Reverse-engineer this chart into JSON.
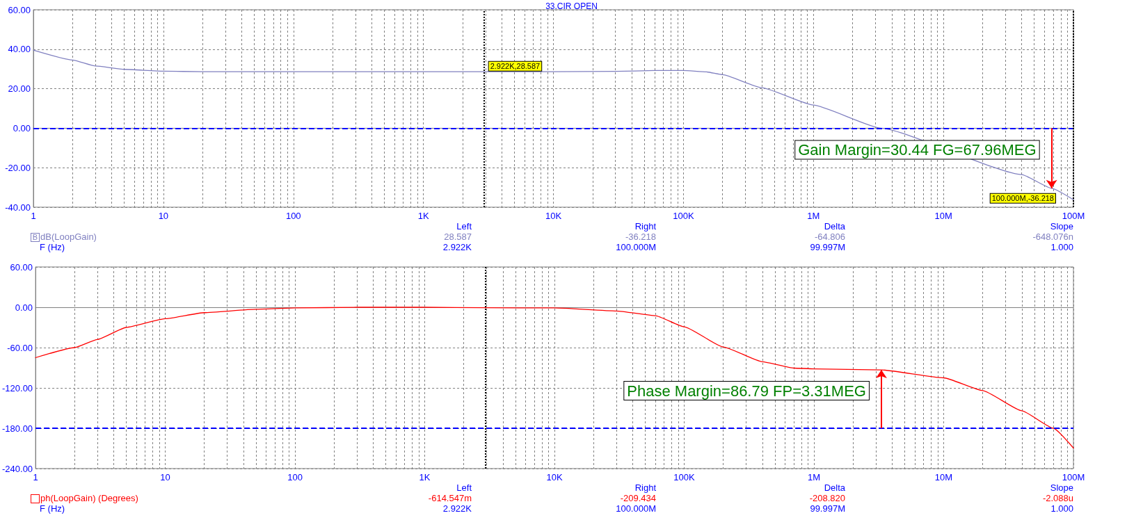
{
  "chart_data": [
    {
      "type": "line",
      "title": "33.CIR OPEN",
      "xlabel": "F (Hz)",
      "log": "x",
      "grid": true,
      "line_style": "solid",
      "xlim": [
        1,
        100000000
      ],
      "xticks": [
        1,
        {
          "value": 2,
          "label": null
        },
        {
          "value": 3,
          "label": null
        },
        {
          "value": 4,
          "label": null
        },
        {
          "value": 5,
          "label": null
        },
        {
          "value": 6,
          "label": null
        },
        {
          "value": 7,
          "label": null
        },
        {
          "value": 8,
          "label": null
        },
        {
          "value": 9,
          "label": null
        },
        10,
        {
          "value": 20,
          "label": null
        },
        {
          "value": 30,
          "label": null
        },
        {
          "value": 40,
          "label": null
        },
        {
          "value": 50,
          "label": null
        },
        {
          "value": 60,
          "label": null
        },
        {
          "value": 70,
          "label": null
        },
        {
          "value": 80,
          "label": null
        },
        {
          "value": 90,
          "label": null
        },
        100,
        {
          "value": 200,
          "label": null
        },
        {
          "value": 300,
          "label": null
        },
        {
          "value": 400,
          "label": null
        },
        {
          "value": 500,
          "label": null
        },
        {
          "value": 600,
          "label": null
        },
        {
          "value": 700,
          "label": null
        },
        {
          "value": 800,
          "label": null
        },
        {
          "value": 900,
          "label": null
        },
        {
          "value": 1000,
          "label": "1K"
        },
        {
          "value": 2000,
          "label": null
        },
        {
          "value": 3000,
          "label": null
        },
        {
          "value": 4000,
          "label": null
        },
        {
          "value": 5000,
          "label": null
        },
        {
          "value": 6000,
          "label": null
        },
        {
          "value": 7000,
          "label": null
        },
        {
          "value": 8000,
          "label": null
        },
        {
          "value": 9000,
          "label": null
        },
        {
          "value": 10000,
          "label": "10K"
        },
        {
          "value": 20000,
          "label": null
        },
        {
          "value": 30000,
          "label": null
        },
        {
          "value": 40000,
          "label": null
        },
        {
          "value": 50000,
          "label": null
        },
        {
          "value": 60000,
          "label": null
        },
        {
          "value": 70000,
          "label": null
        },
        {
          "value": 80000,
          "label": null
        },
        {
          "value": 90000,
          "label": null
        },
        {
          "value": 100000,
          "label": "100K"
        },
        {
          "value": 200000,
          "label": null
        },
        {
          "value": 300000,
          "label": null
        },
        {
          "value": 400000,
          "label": null
        },
        {
          "value": 500000,
          "label": null
        },
        {
          "value": 600000,
          "label": null
        },
        {
          "value": 700000,
          "label": null
        },
        {
          "value": 800000,
          "label": null
        },
        {
          "value": 900000,
          "label": null
        },
        {
          "value": 1000000,
          "label": "1M"
        },
        {
          "value": 2000000,
          "label": null
        },
        {
          "value": 3000000,
          "label": null
        },
        {
          "value": 4000000,
          "label": null
        },
        {
          "value": 5000000,
          "label": null
        },
        {
          "value": 6000000,
          "label": null
        },
        {
          "value": 7000000,
          "label": null
        },
        {
          "value": 8000000,
          "label": null
        },
        {
          "value": 9000000,
          "label": null
        },
        {
          "value": 10000000,
          "label": "10M"
        },
        {
          "value": 20000000,
          "label": null
        },
        {
          "value": 30000000,
          "label": null
        },
        {
          "value": 40000000,
          "label": null
        },
        {
          "value": 50000000,
          "label": null
        },
        {
          "value": 60000000,
          "label": null
        },
        {
          "value": 70000000,
          "label": null
        },
        {
          "value": 80000000,
          "label": null
        },
        {
          "value": 90000000,
          "label": null
        },
        {
          "value": 100000000,
          "label": "100M"
        }
      ],
      "ylim": [
        -40,
        60
      ],
      "yticks": [
        {
          "value": -40,
          "label": "-40.00"
        },
        {
          "value": -20,
          "label": "-20.00"
        },
        {
          "value": 0,
          "label": "0.00"
        },
        {
          "value": 20,
          "label": "20.00"
        },
        {
          "value": 40,
          "label": "40.00"
        },
        {
          "value": 60,
          "label": "60.00"
        }
      ],
      "series": [
        {
          "name": "dB(LoopGain)",
          "color": "#8080c0",
          "x": [
            1,
            2,
            3,
            5,
            10,
            20,
            100,
            1000,
            2922,
            10000,
            30000,
            60000,
            100000,
            150000,
            200000,
            400000,
            1000000,
            3310000,
            40000000,
            67960000,
            100000000
          ],
          "values": [
            39.5,
            34.5,
            31.5,
            29.8,
            28.9,
            28.6,
            28.6,
            28.6,
            28.587,
            28.6,
            28.8,
            29.2,
            29.2,
            28.5,
            27.1,
            20.5,
            11.7,
            0,
            -23.5,
            -30.44,
            -36.218
          ]
        }
      ],
      "ref_lines": [
        {
          "axis": "y",
          "value": 0,
          "color": "#0000ff",
          "line_style": "dashed"
        },
        {
          "axis": "x",
          "value": 2922,
          "label": "2.922K,28.587",
          "color": "#000000",
          "line_style": "dotted"
        },
        {
          "axis": "x",
          "value": 100000000,
          "label": "100.000M,-36.218",
          "color": "#000000",
          "line_style": "dotted"
        }
      ],
      "annotations": [
        "Left",
        "Right",
        "Delta",
        "Slope",
        "28.587",
        "-36.218",
        "-64.806",
        "-648.076n",
        "2.922K",
        "100.000M",
        "99.997M",
        "1.000",
        "B",
        {
          "text": "Gain Margin=30.44 FG=67.96MEG",
          "x": 67960000,
          "y": -30.44
        }
      ]
    },
    {
      "type": "line",
      "xlabel": "F (Hz)",
      "log": "x",
      "grid": true,
      "line_style": "solid",
      "xlim": [
        1,
        100000000
      ],
      "xticks": [
        1,
        {
          "value": 2,
          "label": null
        },
        {
          "value": 3,
          "label": null
        },
        {
          "value": 4,
          "label": null
        },
        {
          "value": 5,
          "label": null
        },
        {
          "value": 6,
          "label": null
        },
        {
          "value": 7,
          "label": null
        },
        {
          "value": 8,
          "label": null
        },
        {
          "value": 9,
          "label": null
        },
        10,
        {
          "value": 20,
          "label": null
        },
        {
          "value": 30,
          "label": null
        },
        {
          "value": 40,
          "label": null
        },
        {
          "value": 50,
          "label": null
        },
        {
          "value": 60,
          "label": null
        },
        {
          "value": 70,
          "label": null
        },
        {
          "value": 80,
          "label": null
        },
        {
          "value": 90,
          "label": null
        },
        100,
        {
          "value": 200,
          "label": null
        },
        {
          "value": 300,
          "label": null
        },
        {
          "value": 400,
          "label": null
        },
        {
          "value": 500,
          "label": null
        },
        {
          "value": 600,
          "label": null
        },
        {
          "value": 700,
          "label": null
        },
        {
          "value": 800,
          "label": null
        },
        {
          "value": 900,
          "label": null
        },
        {
          "value": 1000,
          "label": "1K"
        },
        {
          "value": 2000,
          "label": null
        },
        {
          "value": 3000,
          "label": null
        },
        {
          "value": 4000,
          "label": null
        },
        {
          "value": 5000,
          "label": null
        },
        {
          "value": 6000,
          "label": null
        },
        {
          "value": 7000,
          "label": null
        },
        {
          "value": 8000,
          "label": null
        },
        {
          "value": 9000,
          "label": null
        },
        {
          "value": 10000,
          "label": "10K"
        },
        {
          "value": 20000,
          "label": null
        },
        {
          "value": 30000,
          "label": null
        },
        {
          "value": 40000,
          "label": null
        },
        {
          "value": 50000,
          "label": null
        },
        {
          "value": 60000,
          "label": null
        },
        {
          "value": 70000,
          "label": null
        },
        {
          "value": 80000,
          "label": null
        },
        {
          "value": 90000,
          "label": null
        },
        {
          "value": 100000,
          "label": "100K"
        },
        {
          "value": 200000,
          "label": null
        },
        {
          "value": 300000,
          "label": null
        },
        {
          "value": 400000,
          "label": null
        },
        {
          "value": 500000,
          "label": null
        },
        {
          "value": 600000,
          "label": null
        },
        {
          "value": 700000,
          "label": null
        },
        {
          "value": 800000,
          "label": null
        },
        {
          "value": 900000,
          "label": null
        },
        {
          "value": 1000000,
          "label": "1M"
        },
        {
          "value": 2000000,
          "label": null
        },
        {
          "value": 3000000,
          "label": null
        },
        {
          "value": 4000000,
          "label": null
        },
        {
          "value": 5000000,
          "label": null
        },
        {
          "value": 6000000,
          "label": null
        },
        {
          "value": 7000000,
          "label": null
        },
        {
          "value": 8000000,
          "label": null
        },
        {
          "value": 9000000,
          "label": null
        },
        {
          "value": 10000000,
          "label": "10M"
        },
        {
          "value": 20000000,
          "label": null
        },
        {
          "value": 30000000,
          "label": null
        },
        {
          "value": 40000000,
          "label": null
        },
        {
          "value": 50000000,
          "label": null
        },
        {
          "value": 60000000,
          "label": null
        },
        {
          "value": 70000000,
          "label": null
        },
        {
          "value": 80000000,
          "label": null
        },
        {
          "value": 90000000,
          "label": null
        },
        {
          "value": 100000000,
          "label": "100M"
        }
      ],
      "ylim": [
        -240,
        60
      ],
      "yticks": [
        {
          "value": -240,
          "label": "-240.00"
        },
        {
          "value": -180,
          "label": "-180.00"
        },
        {
          "value": -120,
          "label": "-120.00"
        },
        {
          "value": -60,
          "label": "-60.00"
        },
        {
          "value": 0,
          "label": "0.00"
        },
        {
          "value": 60,
          "label": "60.00"
        }
      ],
      "series": [
        {
          "name": "ph(LoopGain) (Degrees)",
          "color": "#ff0000",
          "x": [
            1,
            2,
            3,
            5,
            10,
            20,
            50,
            100,
            300,
            1000,
            2922,
            10000,
            30000,
            60000,
            100000,
            200000,
            400000,
            700000,
            1000000,
            3310000,
            10000000,
            20000000,
            40000000,
            70000000,
            100000000
          ],
          "values": [
            -75,
            -60,
            -48,
            -30,
            -17,
            -8,
            -3,
            -1,
            0,
            0,
            -0.615,
            -1,
            -5.5,
            -12.5,
            -29,
            -59,
            -81,
            -90.5,
            -91.6,
            -93.21,
            -105,
            -124,
            -154,
            -180,
            -209.434
          ]
        }
      ],
      "ref_lines": [
        {
          "axis": "y",
          "value": -180,
          "color": "#0000ff",
          "line_style": "dashed"
        },
        {
          "axis": "x",
          "value": 2922,
          "color": "#000000",
          "line_style": "dotted"
        }
      ],
      "annotations": [
        "Left",
        "Right",
        "Delta",
        "Slope",
        "-614.547m",
        "-209.434",
        "-208.820",
        "-2.088u",
        "2.922K",
        "100.000M",
        "99.997M",
        "1.000",
        {
          "text": "Phase Margin=86.79 FP=3.31MEG",
          "x": 3310000,
          "y": -93.21
        }
      ]
    }
  ]
}
